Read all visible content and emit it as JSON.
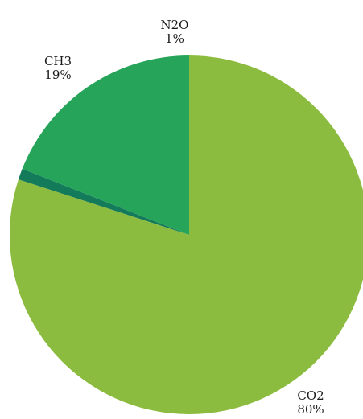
{
  "chart_data": {
    "type": "pie",
    "title": "",
    "start_angle_deg": 0,
    "direction": "clockwise",
    "slices": [
      {
        "label": "CO2",
        "value": 80,
        "value_label": "80%",
        "color": "#8cbc3f"
      },
      {
        "label": "N2O",
        "value": 1,
        "value_label": "1%",
        "color": "#137a5a"
      },
      {
        "label": "CH3",
        "value": 19,
        "value_label": "19%",
        "color": "#26a55a"
      }
    ],
    "legend": "none",
    "label_placement": "outside"
  }
}
